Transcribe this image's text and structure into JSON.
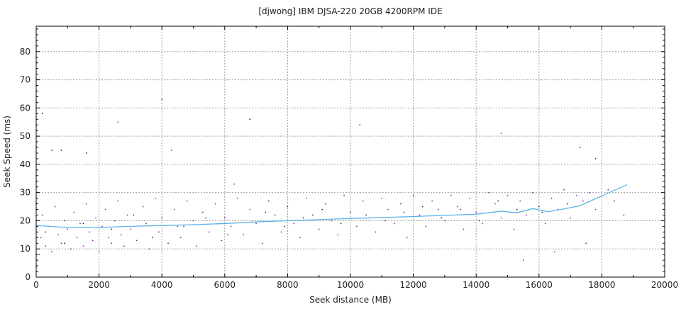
{
  "chart_data": {
    "type": "scatter",
    "title": "[djwong] IBM DJSA-220 20GB 4200RPM IDE",
    "xlabel": "Seek distance (MB)",
    "ylabel": "Seek Speed (ms)",
    "xlim": [
      0,
      20000
    ],
    "ylim": [
      0,
      89
    ],
    "xticks": [
      0,
      2000,
      4000,
      6000,
      8000,
      10000,
      12000,
      14000,
      16000,
      18000,
      20000
    ],
    "yticks": [
      0,
      10,
      20,
      30,
      40,
      50,
      60,
      70,
      80
    ],
    "grid": true,
    "colors": {
      "points_a": "#9400d3",
      "points_b": "#1a1a1a",
      "mean_line": "#5ab4ec",
      "grid": "#a0a0a0"
    },
    "series": [
      {
        "kind": "scatter",
        "color_key": "points_a",
        "points": [
          [
            100,
            8
          ],
          [
            150,
            14
          ],
          [
            200,
            22
          ],
          [
            300,
            11
          ],
          [
            400,
            18
          ],
          [
            500,
            9
          ],
          [
            600,
            25
          ],
          [
            700,
            15
          ],
          [
            800,
            12
          ],
          [
            900,
            20
          ],
          [
            1000,
            17
          ],
          [
            1100,
            10
          ],
          [
            1200,
            23
          ],
          [
            1300,
            14
          ],
          [
            1400,
            19
          ],
          [
            1500,
            11
          ],
          [
            1600,
            26
          ],
          [
            1700,
            16
          ],
          [
            1800,
            13
          ],
          [
            1900,
            21
          ],
          [
            2000,
            9
          ],
          [
            2100,
            18
          ],
          [
            2200,
            24
          ],
          [
            2300,
            14
          ],
          [
            2400,
            12
          ],
          [
            2500,
            20
          ],
          [
            2600,
            27
          ],
          [
            2700,
            15
          ],
          [
            2800,
            11
          ],
          [
            2900,
            22
          ],
          [
            3000,
            17
          ],
          [
            3200,
            13
          ],
          [
            3400,
            25
          ],
          [
            3500,
            19
          ],
          [
            3600,
            10
          ],
          [
            3800,
            28
          ],
          [
            3900,
            16
          ],
          [
            4000,
            21
          ],
          [
            4200,
            12
          ],
          [
            4400,
            24
          ],
          [
            4500,
            18
          ],
          [
            4600,
            14
          ],
          [
            4800,
            27
          ],
          [
            5000,
            20
          ],
          [
            5100,
            11
          ],
          [
            5300,
            23
          ],
          [
            5500,
            16
          ],
          [
            5700,
            26
          ],
          [
            5900,
            13
          ],
          [
            6000,
            21
          ],
          [
            6200,
            18
          ],
          [
            6400,
            28
          ],
          [
            6600,
            15
          ],
          [
            6800,
            24
          ],
          [
            7000,
            19
          ],
          [
            7200,
            12
          ],
          [
            7400,
            27
          ],
          [
            7600,
            22
          ],
          [
            7800,
            16
          ],
          [
            8000,
            25
          ],
          [
            8200,
            19
          ],
          [
            8400,
            14
          ],
          [
            8600,
            28
          ],
          [
            8800,
            22
          ],
          [
            9000,
            17
          ],
          [
            9200,
            26
          ],
          [
            9400,
            20
          ],
          [
            9600,
            15
          ],
          [
            9800,
            29
          ],
          [
            10000,
            23
          ],
          [
            10200,
            18
          ],
          [
            10400,
            27
          ],
          [
            10600,
            21
          ],
          [
            10800,
            16
          ],
          [
            11000,
            28
          ],
          [
            11200,
            24
          ],
          [
            11400,
            19
          ],
          [
            11600,
            26
          ],
          [
            11800,
            14
          ],
          [
            12000,
            29
          ],
          [
            12200,
            22
          ],
          [
            12400,
            18
          ],
          [
            12600,
            27
          ],
          [
            12800,
            24
          ],
          [
            13000,
            20
          ],
          [
            13200,
            29
          ],
          [
            13400,
            25
          ],
          [
            13600,
            17
          ],
          [
            13800,
            28
          ],
          [
            14000,
            23
          ],
          [
            14200,
            19
          ],
          [
            14400,
            30
          ],
          [
            14600,
            26
          ],
          [
            14800,
            21
          ],
          [
            15000,
            29
          ],
          [
            15200,
            17
          ],
          [
            15400,
            27
          ],
          [
            15600,
            22
          ],
          [
            15800,
            30
          ],
          [
            16000,
            25
          ],
          [
            16200,
            19
          ],
          [
            16400,
            28
          ],
          [
            16600,
            24
          ],
          [
            16800,
            31
          ],
          [
            17000,
            21
          ],
          [
            17200,
            29
          ],
          [
            17400,
            27
          ],
          [
            17600,
            30
          ],
          [
            17800,
            24
          ],
          [
            18200,
            31
          ],
          [
            18400,
            27
          ],
          [
            18700,
            22
          ],
          [
            14800,
            51
          ],
          [
            4300,
            45
          ],
          [
            4000,
            63
          ],
          [
            2600,
            55
          ],
          [
            6300,
            33
          ],
          [
            15500,
            6
          ],
          [
            16500,
            9
          ],
          [
            17500,
            12
          ]
        ]
      },
      {
        "kind": "scatter",
        "color_key": "points_b",
        "points": [
          [
            200,
            58
          ],
          [
            500,
            45
          ],
          [
            800,
            45
          ],
          [
            300,
            16
          ],
          [
            900,
            12
          ],
          [
            1500,
            19
          ],
          [
            2400,
            17
          ],
          [
            3100,
            22
          ],
          [
            3700,
            14
          ],
          [
            4700,
            18
          ],
          [
            5400,
            21
          ],
          [
            6100,
            15
          ],
          [
            6800,
            56
          ],
          [
            7300,
            23
          ],
          [
            7900,
            18
          ],
          [
            8500,
            21
          ],
          [
            9100,
            24
          ],
          [
            9700,
            19
          ],
          [
            10300,
            54
          ],
          [
            10500,
            22
          ],
          [
            11100,
            20
          ],
          [
            11700,
            23
          ],
          [
            12300,
            25
          ],
          [
            12900,
            21
          ],
          [
            13500,
            24
          ],
          [
            14100,
            20
          ],
          [
            14700,
            27
          ],
          [
            15300,
            24
          ],
          [
            16100,
            23
          ],
          [
            16900,
            26
          ],
          [
            17300,
            46
          ],
          [
            17800,
            42
          ],
          [
            1600,
            44
          ]
        ]
      },
      {
        "kind": "line",
        "color_key": "mean_line",
        "points": [
          [
            0,
            18.3
          ],
          [
            1000,
            17.6
          ],
          [
            2000,
            17.6
          ],
          [
            3000,
            18.0
          ],
          [
            4000,
            18.3
          ],
          [
            5000,
            18.6
          ],
          [
            6000,
            19.0
          ],
          [
            7000,
            19.6
          ],
          [
            8000,
            20.0
          ],
          [
            9000,
            20.4
          ],
          [
            10000,
            20.8
          ],
          [
            11000,
            21.1
          ],
          [
            12000,
            21.5
          ],
          [
            13000,
            21.9
          ],
          [
            14000,
            22.3
          ],
          [
            14800,
            23.4
          ],
          [
            15300,
            22.8
          ],
          [
            15800,
            24.3
          ],
          [
            16300,
            23.2
          ],
          [
            16800,
            24.2
          ],
          [
            17300,
            25.3
          ],
          [
            18000,
            28.8
          ],
          [
            18800,
            32.8
          ]
        ]
      }
    ]
  }
}
